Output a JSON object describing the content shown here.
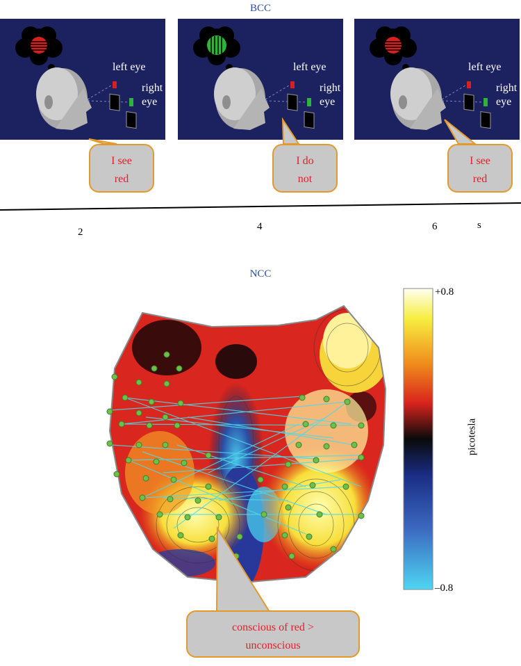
{
  "top_title": "BCC",
  "bottom_title": "NCC",
  "panels": [
    {
      "left_eye": "left eye",
      "right_eye_1": "right",
      "right_eye_2": "eye",
      "speech": [
        "I see",
        "red"
      ],
      "thought_color": "red"
    },
    {
      "left_eye": "left eye",
      "right_eye_1": "right",
      "right_eye_2": "eye",
      "speech": [
        "I do",
        "not"
      ],
      "thought_color": "green"
    },
    {
      "left_eye": "left eye",
      "right_eye_1": "right",
      "right_eye_2": "eye",
      "speech": [
        "I see",
        "red"
      ],
      "thought_color": "red"
    }
  ],
  "timeline": {
    "ticks": [
      "2",
      "4",
      "6"
    ],
    "unit": "s"
  },
  "colorbar": {
    "max": "+0.8",
    "min": "–0.8",
    "label": "picotesla"
  },
  "callout": [
    "conscious of red >",
    "unconscious"
  ],
  "colors": {
    "panel_bg": "#1c2160",
    "bubble_border": "#e39a2a",
    "speech_text": "#e0202a",
    "title": "#2b4a9a"
  }
}
